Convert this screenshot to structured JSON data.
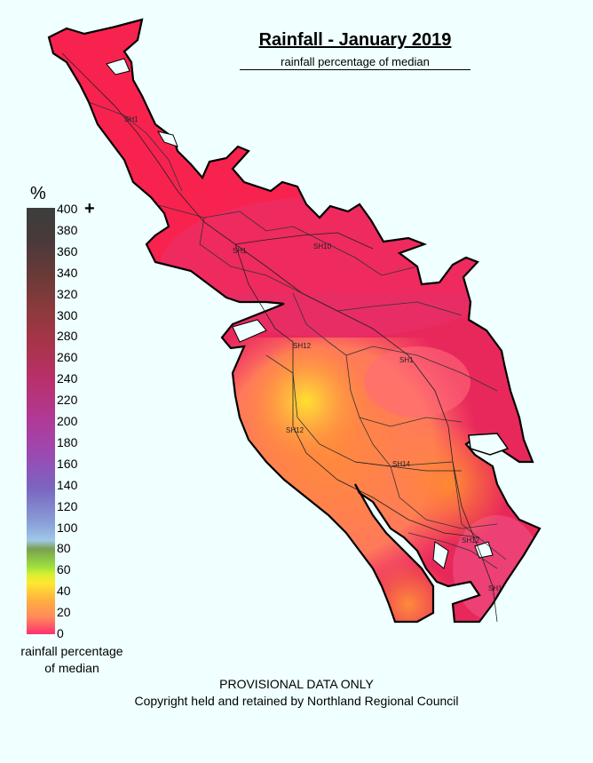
{
  "title": "Rainfall - January 2019",
  "subtitle": "rainfall percentage of median",
  "legend": {
    "unit_symbol": "%",
    "plus_symbol": "+",
    "caption_line1": "rainfall percentage",
    "caption_line2": "of median",
    "ticks": [
      "400",
      "380",
      "360",
      "340",
      "320",
      "300",
      "280",
      "260",
      "240",
      "220",
      "200",
      "180",
      "160",
      "140",
      "120",
      "100",
      "80",
      "60",
      "40",
      "20",
      "0"
    ]
  },
  "road_labels": {
    "sh1_north": "SH1",
    "sh1_mid": "SH1",
    "sh10": "SH10",
    "sh12_a": "SH12",
    "sh1_east": "SH1",
    "sh12_b": "SH12",
    "sh14": "SH14",
    "sh12_c": "SH12",
    "sh1_south": "SH1"
  },
  "footer": {
    "line1": "PROVISIONAL DATA ONLY",
    "line2": "Copyright held and retained by Northland Regional Council"
  },
  "colors": {
    "background": "#f0ffff",
    "low_red": "#ff2a55",
    "orange": "#ff8a3c",
    "yellow": "#ffe030",
    "magenta": "#e0307a"
  }
}
